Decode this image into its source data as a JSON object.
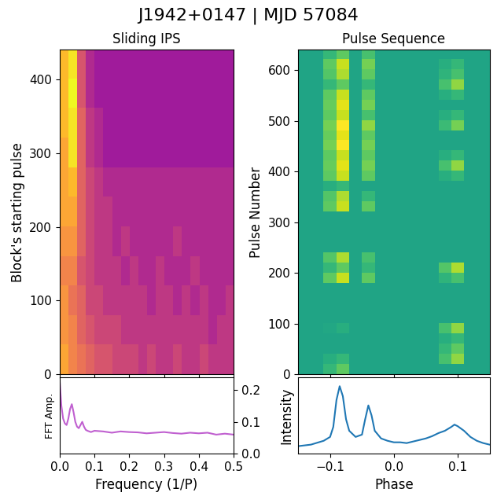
{
  "title": "J1942+0147 | MJD 57084",
  "chart_data": [
    {
      "type": "heatmap",
      "title": "Sliding IPS",
      "y_label": "Block's starting pulse",
      "color": "plasma",
      "color_range": [
        0,
        1
      ],
      "xlim": [
        0,
        0.5
      ],
      "ylim": [
        0,
        440
      ],
      "xticks": [
        {
          "value": 0.0,
          "label": "0.0"
        },
        {
          "value": 0.1,
          "label": "0.1"
        },
        {
          "value": 0.2,
          "label": "0.2"
        },
        {
          "value": 0.3,
          "label": "0.3"
        },
        {
          "value": 0.4,
          "label": "0.4"
        },
        {
          "value": 0.5,
          "label": "0.5"
        }
      ],
      "yticks": [
        0,
        100,
        200,
        300,
        400
      ],
      "tick_labels": "y",
      "cells": [
        [
          0.8,
          0.7,
          0.65,
          0.6,
          0.55,
          0.55,
          0.5,
          0.5,
          0.5,
          0.45,
          0.5,
          0.45,
          0.45,
          0.5,
          0.45,
          0.45,
          0.5,
          0.45,
          0.45,
          0.45
        ],
        [
          0.75,
          0.7,
          0.6,
          0.55,
          0.5,
          0.5,
          0.5,
          0.45,
          0.45,
          0.45,
          0.45,
          0.45,
          0.45,
          0.45,
          0.45,
          0.45,
          0.45,
          0.4,
          0.45,
          0.45
        ],
        [
          0.75,
          0.65,
          0.6,
          0.5,
          0.5,
          0.45,
          0.45,
          0.45,
          0.45,
          0.45,
          0.4,
          0.45,
          0.45,
          0.4,
          0.45,
          0.4,
          0.45,
          0.4,
          0.4,
          0.45
        ],
        [
          0.7,
          0.7,
          0.55,
          0.5,
          0.45,
          0.45,
          0.45,
          0.4,
          0.45,
          0.4,
          0.4,
          0.45,
          0.4,
          0.4,
          0.4,
          0.45,
          0.4,
          0.4,
          0.4,
          0.4
        ],
        [
          0.75,
          0.75,
          0.6,
          0.5,
          0.45,
          0.45,
          0.4,
          0.45,
          0.4,
          0.4,
          0.4,
          0.4,
          0.4,
          0.45,
          0.4,
          0.4,
          0.4,
          0.4,
          0.4,
          0.4
        ],
        [
          0.8,
          0.8,
          0.6,
          0.5,
          0.45,
          0.45,
          0.4,
          0.4,
          0.4,
          0.4,
          0.4,
          0.4,
          0.4,
          0.4,
          0.4,
          0.4,
          0.4,
          0.4,
          0.4,
          0.4
        ],
        [
          0.8,
          0.85,
          0.6,
          0.5,
          0.45,
          0.4,
          0.4,
          0.4,
          0.4,
          0.4,
          0.4,
          0.4,
          0.4,
          0.4,
          0.4,
          0.4,
          0.4,
          0.4,
          0.4,
          0.4
        ],
        [
          0.8,
          0.95,
          0.6,
          0.45,
          0.4,
          0.35,
          0.35,
          0.35,
          0.35,
          0.35,
          0.35,
          0.35,
          0.35,
          0.35,
          0.35,
          0.35,
          0.35,
          0.35,
          0.35,
          0.35
        ],
        [
          0.85,
          0.95,
          0.6,
          0.45,
          0.4,
          0.35,
          0.35,
          0.35,
          0.35,
          0.35,
          0.35,
          0.35,
          0.35,
          0.35,
          0.35,
          0.35,
          0.35,
          0.35,
          0.35,
          0.35
        ],
        [
          0.85,
          1.0,
          0.55,
          0.4,
          0.35,
          0.35,
          0.35,
          0.35,
          0.35,
          0.35,
          0.35,
          0.35,
          0.35,
          0.35,
          0.35,
          0.35,
          0.35,
          0.35,
          0.35,
          0.35
        ],
        [
          0.85,
          0.95,
          0.55,
          0.4,
          0.35,
          0.35,
          0.35,
          0.35,
          0.35,
          0.35,
          0.35,
          0.35,
          0.35,
          0.35,
          0.35,
          0.35,
          0.35,
          0.35,
          0.35,
          0.35
        ]
      ]
    },
    {
      "type": "line",
      "x_label": "Frequency (1/P)",
      "y_label": "FFT Amp.",
      "color": "#c060d0",
      "xlim": [
        0,
        0.5
      ],
      "ylim": [
        0,
        0.24
      ],
      "xticks": [
        {
          "value": 0.0,
          "label": "0.0"
        },
        {
          "value": 0.1,
          "label": "0.1"
        },
        {
          "value": 0.2,
          "label": "0.2"
        },
        {
          "value": 0.3,
          "label": "0.3"
        },
        {
          "value": 0.4,
          "label": "0.4"
        },
        {
          "value": 0.5,
          "label": "0.5"
        }
      ],
      "yticks": [
        {
          "value": 0.0,
          "label": "0.0"
        },
        {
          "value": 0.1,
          "label": "0.1"
        },
        {
          "value": 0.2,
          "label": "0.2"
        }
      ],
      "x": [
        0.0,
        0.005,
        0.01,
        0.015,
        0.02,
        0.025,
        0.03,
        0.035,
        0.04,
        0.045,
        0.05,
        0.055,
        0.06,
        0.065,
        0.07,
        0.075,
        0.08,
        0.09,
        0.1,
        0.125,
        0.15,
        0.175,
        0.2,
        0.225,
        0.25,
        0.275,
        0.3,
        0.325,
        0.35,
        0.375,
        0.4,
        0.425,
        0.45,
        0.475,
        0.5
      ],
      "values": [
        0.23,
        0.15,
        0.11,
        0.095,
        0.09,
        0.11,
        0.14,
        0.155,
        0.13,
        0.1,
        0.085,
        0.08,
        0.09,
        0.1,
        0.085,
        0.075,
        0.072,
        0.068,
        0.072,
        0.07,
        0.066,
        0.07,
        0.068,
        0.067,
        0.064,
        0.066,
        0.068,
        0.065,
        0.063,
        0.066,
        0.064,
        0.066,
        0.06,
        0.063,
        0.06
      ]
    },
    {
      "type": "heatmap",
      "title": "Pulse Sequence",
      "y_label": "Pulse Number",
      "color": "viridis",
      "color_range": [
        -0.3,
        0.9
      ],
      "xlim": [
        -0.15,
        0.15
      ],
      "ylim": [
        0,
        640
      ],
      "xticks": [
        {
          "value": -0.1,
          "label": "−0.1"
        },
        {
          "value": 0.0,
          "label": "0.0"
        },
        {
          "value": 0.1,
          "label": "0.1"
        }
      ],
      "yticks": [
        0,
        100,
        200,
        300,
        400,
        500,
        600
      ],
      "tick_labels": "y",
      "cells": [
        [
          0.4,
          0.4,
          0.5,
          0.6,
          0.4,
          0.4,
          0.4,
          0.4,
          0.4,
          0.4,
          0.4,
          0.4,
          0.4,
          0.4,
          0.4
        ],
        [
          0.4,
          0.4,
          0.45,
          0.5,
          0.4,
          0.4,
          0.4,
          0.4,
          0.4,
          0.4,
          0.4,
          0.55,
          0.7,
          0.4,
          0.4
        ],
        [
          0.4,
          0.4,
          0.4,
          0.4,
          0.4,
          0.4,
          0.4,
          0.4,
          0.4,
          0.4,
          0.4,
          0.5,
          0.6,
          0.4,
          0.4
        ],
        [
          0.4,
          0.4,
          0.4,
          0.4,
          0.4,
          0.4,
          0.4,
          0.4,
          0.4,
          0.4,
          0.4,
          0.45,
          0.5,
          0.4,
          0.4
        ],
        [
          0.4,
          0.4,
          0.42,
          0.45,
          0.4,
          0.4,
          0.4,
          0.4,
          0.4,
          0.4,
          0.4,
          0.55,
          0.7,
          0.4,
          0.4
        ],
        [
          0.4,
          0.4,
          0.4,
          0.4,
          0.4,
          0.4,
          0.4,
          0.4,
          0.4,
          0.4,
          0.4,
          0.4,
          0.4,
          0.4,
          0.4
        ],
        [
          0.4,
          0.4,
          0.4,
          0.4,
          0.4,
          0.4,
          0.4,
          0.4,
          0.4,
          0.4,
          0.4,
          0.4,
          0.4,
          0.4,
          0.4
        ],
        [
          0.4,
          0.4,
          0.4,
          0.4,
          0.4,
          0.4,
          0.4,
          0.4,
          0.4,
          0.4,
          0.4,
          0.4,
          0.4,
          0.4,
          0.4
        ],
        [
          0.4,
          0.4,
          0.4,
          0.4,
          0.4,
          0.4,
          0.4,
          0.4,
          0.4,
          0.4,
          0.4,
          0.4,
          0.4,
          0.4,
          0.4
        ],
        [
          0.4,
          0.4,
          0.6,
          0.8,
          0.4,
          0.6,
          0.4,
          0.4,
          0.4,
          0.4,
          0.4,
          0.48,
          0.55,
          0.4,
          0.4
        ],
        [
          0.4,
          0.4,
          0.5,
          0.6,
          0.4,
          0.5,
          0.4,
          0.4,
          0.4,
          0.4,
          0.4,
          0.58,
          0.75,
          0.4,
          0.4
        ],
        [
          0.4,
          0.4,
          0.58,
          0.75,
          0.4,
          0.55,
          0.4,
          0.4,
          0.4,
          0.4,
          0.4,
          0.4,
          0.4,
          0.4,
          0.4
        ],
        [
          0.4,
          0.4,
          0.4,
          0.4,
          0.4,
          0.4,
          0.4,
          0.4,
          0.4,
          0.4,
          0.4,
          0.4,
          0.4,
          0.4,
          0.4
        ],
        [
          0.4,
          0.4,
          0.4,
          0.4,
          0.4,
          0.4,
          0.4,
          0.4,
          0.4,
          0.4,
          0.4,
          0.4,
          0.4,
          0.4,
          0.4
        ],
        [
          0.4,
          0.4,
          0.4,
          0.4,
          0.4,
          0.4,
          0.4,
          0.4,
          0.4,
          0.4,
          0.4,
          0.4,
          0.4,
          0.4,
          0.4
        ],
        [
          0.4,
          0.4,
          0.4,
          0.4,
          0.4,
          0.4,
          0.4,
          0.4,
          0.4,
          0.4,
          0.4,
          0.4,
          0.4,
          0.4,
          0.4
        ],
        [
          0.4,
          0.4,
          0.6,
          0.8,
          0.4,
          0.6,
          0.4,
          0.4,
          0.4,
          0.4,
          0.4,
          0.4,
          0.4,
          0.4,
          0.4
        ],
        [
          0.4,
          0.4,
          0.58,
          0.75,
          0.4,
          0.5,
          0.4,
          0.4,
          0.4,
          0.4,
          0.4,
          0.4,
          0.4,
          0.4,
          0.4
        ],
        [
          0.4,
          0.4,
          0.45,
          0.5,
          0.4,
          0.4,
          0.4,
          0.4,
          0.4,
          0.4,
          0.4,
          0.4,
          0.4,
          0.4,
          0.4
        ],
        [
          0.4,
          0.4,
          0.6,
          0.8,
          0.4,
          0.6,
          0.4,
          0.4,
          0.4,
          0.4,
          0.4,
          0.45,
          0.5,
          0.4,
          0.4
        ],
        [
          0.4,
          0.4,
          0.62,
          0.85,
          0.4,
          0.65,
          0.4,
          0.4,
          0.4,
          0.4,
          0.4,
          0.55,
          0.7,
          0.4,
          0.4
        ],
        [
          0.4,
          0.4,
          0.6,
          0.8,
          0.4,
          0.6,
          0.4,
          0.4,
          0.4,
          0.4,
          0.4,
          0.45,
          0.5,
          0.4,
          0.4
        ],
        [
          0.4,
          0.4,
          0.65,
          0.9,
          0.4,
          0.65,
          0.4,
          0.4,
          0.4,
          0.4,
          0.4,
          0.4,
          0.4,
          0.4,
          0.4
        ],
        [
          0.4,
          0.4,
          0.62,
          0.85,
          0.4,
          0.6,
          0.4,
          0.4,
          0.4,
          0.4,
          0.4,
          0.4,
          0.4,
          0.4,
          0.4
        ],
        [
          0.4,
          0.4,
          0.65,
          0.9,
          0.4,
          0.7,
          0.4,
          0.4,
          0.4,
          0.4,
          0.4,
          0.52,
          0.65,
          0.4,
          0.4
        ],
        [
          0.4,
          0.4,
          0.6,
          0.8,
          0.4,
          0.55,
          0.4,
          0.4,
          0.4,
          0.4,
          0.4,
          0.45,
          0.5,
          0.4,
          0.4
        ],
        [
          0.4,
          0.4,
          0.62,
          0.85,
          0.4,
          0.65,
          0.4,
          0.4,
          0.4,
          0.4,
          0.4,
          0.4,
          0.4,
          0.4,
          0.4
        ],
        [
          0.4,
          0.4,
          0.6,
          0.8,
          0.4,
          0.6,
          0.4,
          0.4,
          0.4,
          0.4,
          0.4,
          0.45,
          0.5,
          0.4,
          0.4
        ],
        [
          0.4,
          0.4,
          0.5,
          0.6,
          0.4,
          0.5,
          0.4,
          0.4,
          0.4,
          0.4,
          0.4,
          0.55,
          0.7,
          0.4,
          0.4
        ],
        [
          0.4,
          0.4,
          0.58,
          0.75,
          0.4,
          0.6,
          0.4,
          0.4,
          0.4,
          0.4,
          0.4,
          0.48,
          0.55,
          0.4,
          0.4
        ],
        [
          0.4,
          0.4,
          0.6,
          0.8,
          0.4,
          0.65,
          0.4,
          0.4,
          0.4,
          0.4,
          0.4,
          0.45,
          0.5,
          0.4,
          0.4
        ],
        [
          0.4,
          0.4,
          0.5,
          0.6,
          0.4,
          0.55,
          0.4,
          0.4,
          0.4,
          0.4,
          0.4,
          0.4,
          0.4,
          0.4,
          0.4
        ]
      ]
    },
    {
      "type": "line",
      "x_label": "Phase",
      "y_label": "Intensity",
      "color": "#1f77b4",
      "xlim": [
        -0.15,
        0.15
      ],
      "ylim": [
        0,
        1
      ],
      "xticks": [
        {
          "value": -0.1,
          "label": "−0.1"
        },
        {
          "value": 0.0,
          "label": "0.0"
        },
        {
          "value": 0.1,
          "label": "0.1"
        }
      ],
      "yticks": [],
      "tick_labels": "x",
      "x": [
        -0.15,
        -0.13,
        -0.11,
        -0.1,
        -0.095,
        -0.09,
        -0.085,
        -0.08,
        -0.075,
        -0.07,
        -0.06,
        -0.05,
        -0.045,
        -0.04,
        -0.035,
        -0.03,
        -0.02,
        -0.01,
        0,
        0.01,
        0.02,
        0.03,
        0.04,
        0.05,
        0.06,
        0.07,
        0.08,
        0.09,
        0.095,
        0.1,
        0.11,
        0.12,
        0.13,
        0.14,
        0.15
      ],
      "values": [
        0.1,
        0.12,
        0.17,
        0.22,
        0.35,
        0.7,
        0.88,
        0.75,
        0.45,
        0.3,
        0.22,
        0.25,
        0.45,
        0.63,
        0.5,
        0.3,
        0.2,
        0.17,
        0.15,
        0.15,
        0.14,
        0.16,
        0.18,
        0.2,
        0.23,
        0.27,
        0.3,
        0.35,
        0.38,
        0.36,
        0.3,
        0.22,
        0.17,
        0.14,
        0.12
      ]
    }
  ]
}
